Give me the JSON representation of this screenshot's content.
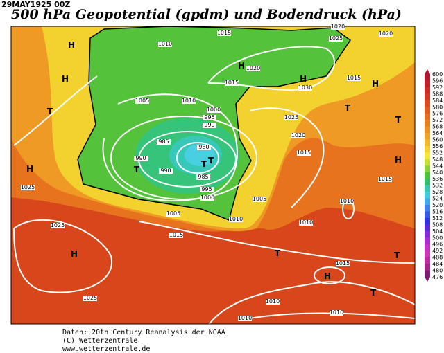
{
  "map": {
    "header": "29MAY1925 00Z",
    "title": "500 hPa Geopotential (gpdm) und Bodendruck (hPa)",
    "isobar_labels": [
      1020,
      1025,
      1020,
      1015,
      1010,
      1020,
      1015,
      1030,
      1015,
      1005,
      1010,
      1000,
      995,
      990,
      985,
      980,
      990,
      990,
      985,
      995,
      1000,
      1005,
      1025,
      1020,
      1015,
      1015,
      1025,
      1025,
      1005,
      1010,
      1015,
      1010,
      1010,
      1015,
      1010,
      1010,
      1025,
      1010
    ],
    "pressure_centers": [
      "H",
      "H",
      "T",
      "H",
      "H",
      "H",
      "H",
      "H",
      "T",
      "T",
      "T",
      "T",
      "T",
      "H",
      "T",
      "T",
      "H",
      "T"
    ],
    "colorbar": {
      "labels": [
        600,
        596,
        592,
        588,
        584,
        580,
        576,
        572,
        568,
        564,
        560,
        556,
        552,
        548,
        544,
        540,
        536,
        532,
        528,
        524,
        520,
        516,
        512,
        508,
        504,
        500,
        496,
        492,
        488,
        484,
        480,
        476
      ],
      "colors": [
        "#b4182e",
        "#c41e2a",
        "#cf2a24",
        "#d6361e",
        "#dc4a1c",
        "#e05c1c",
        "#e46e1e",
        "#e88020",
        "#ec9224",
        "#f0a428",
        "#f4b82c",
        "#f8d030",
        "#f4e634",
        "#c8e034",
        "#8cd236",
        "#4cc43a",
        "#30c070",
        "#36c8b0",
        "#40cce0",
        "#40a8ec",
        "#3c80ec",
        "#3458e8",
        "#3030e0",
        "#5a28dc",
        "#8428d8",
        "#a82cd4",
        "#c430c8",
        "#d034b8",
        "#c02ca0",
        "#a42488",
        "#801c70"
      ]
    },
    "footer": [
      "Daten: 20th Century Reanalysis der NOAA",
      "(C) Wetterzentrale",
      "www.wetterzentrale.de"
    ]
  }
}
